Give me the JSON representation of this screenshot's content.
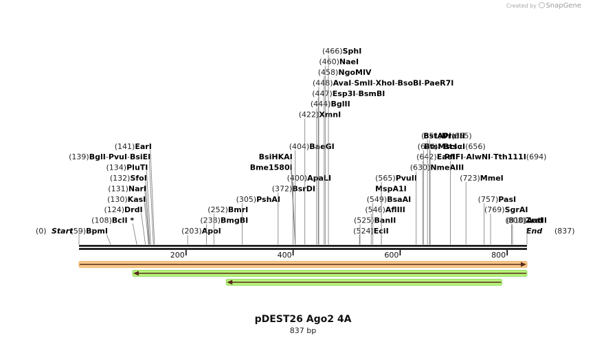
{
  "watermark": {
    "prefix": "Created by",
    "brand": "SnapGene"
  },
  "plasmid": {
    "name": "pDEST26 Ago2 4A",
    "length_label": "837 bp",
    "length": 837
  },
  "scale_ticks": [
    200,
    400,
    600,
    800
  ],
  "ends": {
    "start": {
      "pos": 0,
      "label": "Start"
    },
    "end": {
      "pos": 837,
      "label": "End"
    }
  },
  "colors": {
    "orange_fill": "#f7c98a",
    "orange_edge": "#e8a44a",
    "green_fill": "#b6f27a",
    "green_edge": "#7fd64a",
    "arrow": "#5a2a1a",
    "leader": "#777777"
  },
  "features": [
    {
      "start": 0,
      "end": 837,
      "dir": 1,
      "color": "orange",
      "row": 0
    },
    {
      "start": 100,
      "end": 837,
      "dir": -1,
      "color": "green",
      "row": 1
    },
    {
      "start": 275,
      "end": 790,
      "dir": -1,
      "color": "green",
      "row": 2
    }
  ],
  "sites": [
    {
      "row": 0,
      "side": "L",
      "stick": 59,
      "parts": [
        {
          "pos": 59,
          "name": "BpmI"
        }
      ]
    },
    {
      "row": 0,
      "side": "R",
      "stick": 203,
      "parts": [
        {
          "pos": 203,
          "name": "ApoI"
        }
      ]
    },
    {
      "row": 0,
      "side": "R",
      "stick": 524,
      "parts": [
        {
          "pos": 524,
          "name": "EciI"
        }
      ]
    },
    {
      "row": 1,
      "side": "L",
      "stick": 108,
      "parts": [
        {
          "pos": 108,
          "name": "BclI *"
        }
      ]
    },
    {
      "row": 1,
      "side": "R",
      "stick": 238,
      "parts": [
        {
          "pos": 238,
          "name": "BmgBI"
        }
      ]
    },
    {
      "row": 1,
      "side": "R",
      "stick": 525,
      "parts": [
        {
          "pos": 525,
          "name": "BanII"
        }
      ]
    },
    {
      "row": 1,
      "side": "R",
      "stick": 808,
      "parts": [
        {
          "pos": 808,
          "name": "ZraI"
        }
      ]
    },
    {
      "row": 1,
      "side": "R",
      "stick": 810,
      "parts": [
        {
          "pos": 810,
          "name": "AatII"
        }
      ]
    },
    {
      "row": 2,
      "side": "L",
      "stick": 124,
      "parts": [
        {
          "pos": 124,
          "name": "DrdI"
        }
      ]
    },
    {
      "row": 2,
      "side": "R",
      "stick": 252,
      "parts": [
        {
          "pos": 252,
          "name": "BmrI"
        }
      ]
    },
    {
      "row": 2,
      "side": "R",
      "stick": 546,
      "parts": [
        {
          "pos": 546,
          "name": "AflIII"
        }
      ]
    },
    {
      "row": 2,
      "side": "R",
      "stick": 769,
      "parts": [
        {
          "pos": 769,
          "name": "SgrAI"
        }
      ]
    },
    {
      "row": 3,
      "side": "L",
      "stick": 130,
      "parts": [
        {
          "pos": 130,
          "name": "KasI"
        }
      ]
    },
    {
      "row": 3,
      "side": "R",
      "stick": 305,
      "parts": [
        {
          "pos": 305,
          "name": "PshAI"
        }
      ]
    },
    {
      "row": 3,
      "side": "R",
      "stick": 549,
      "parts": [
        {
          "pos": 549,
          "name": "BsaAI"
        }
      ]
    },
    {
      "row": 3,
      "side": "R",
      "stick": 757,
      "parts": [
        {
          "pos": 757,
          "name": "PasI"
        }
      ]
    },
    {
      "row": 4,
      "side": "L",
      "stick": 131,
      "parts": [
        {
          "pos": 131,
          "name": "NarI"
        }
      ]
    },
    {
      "row": 4,
      "side": "R",
      "stick": 372,
      "parts": [
        {
          "pos": 372,
          "name": "BsrDI"
        }
      ]
    },
    {
      "row": 4,
      "side": "R",
      "stick": 565,
      "parts": [
        {
          "name": "MspA1I"
        }
      ]
    },
    {
      "row": 5,
      "side": "L",
      "stick": 132,
      "parts": [
        {
          "pos": 132,
          "name": "SfoI"
        }
      ]
    },
    {
      "row": 5,
      "side": "R",
      "stick": 400,
      "parts": [
        {
          "pos": 400,
          "name": "ApaLI"
        }
      ]
    },
    {
      "row": 5,
      "side": "R",
      "stick": 565,
      "parts": [
        {
          "pos": 565,
          "name": "PvuII"
        }
      ]
    },
    {
      "row": 5,
      "side": "R",
      "stick": 723,
      "parts": [
        {
          "pos": 723,
          "name": "MmeI"
        }
      ]
    },
    {
      "row": 6,
      "side": "L",
      "stick": 134,
      "parts": [
        {
          "pos": 134,
          "name": "PluTI"
        }
      ]
    },
    {
      "row": 6,
      "side": "R",
      "stick": 630,
      "parts": [
        {
          "pos": 630,
          "name": "NmeAIII"
        }
      ]
    },
    {
      "row": 6,
      "side": "L",
      "stick": 404,
      "parts": [
        {
          "name": "Bme1580I"
        }
      ]
    },
    {
      "row": 7,
      "side": "L",
      "stick": 139,
      "parts": [
        {
          "pos": 139,
          "name": "BglI"
        },
        {
          "name": "PvuI"
        },
        {
          "name": "BsiEI"
        }
      ]
    },
    {
      "row": 7,
      "side": "R",
      "stick": 642,
      "parts": [
        {
          "pos": 642,
          "name": "EaeI"
        }
      ]
    },
    {
      "row": 7,
      "side": "L",
      "stick": 404,
      "parts": [
        {
          "name": "BsiHKAI"
        }
      ]
    },
    {
      "row": 7,
      "side": "R",
      "stick": 694,
      "parts": [
        {
          "name": "PflFI"
        },
        {
          "name": "AlwNI"
        },
        {
          "name": "Tth111I"
        },
        {
          "pos": 694
        }
      ]
    },
    {
      "row": 8,
      "side": "L",
      "stick": 141,
      "parts": [
        {
          "pos": 141,
          "name": "EarI"
        }
      ]
    },
    {
      "row": 8,
      "side": "R",
      "stick": 404,
      "parts": [
        {
          "pos": 404,
          "name": "BaeGI"
        }
      ]
    },
    {
      "row": 8,
      "side": "R",
      "stick": 644,
      "parts": [
        {
          "pos": 644,
          "name": "MscI"
        }
      ]
    },
    {
      "row": 8,
      "side": "R",
      "stick": 656,
      "parts": [
        {
          "name": "BtsI"
        },
        {
          "name": "BtsαI"
        },
        {
          "pos": 656
        }
      ]
    },
    {
      "row": 9,
      "side": "R",
      "stick": 651,
      "parts": [
        {
          "pos": 651,
          "name": "DraIII"
        }
      ]
    },
    {
      "row": 9,
      "side": "R",
      "stick": 655,
      "parts": [
        {
          "name": "BstAPI"
        },
        {
          "pos": 655
        }
      ]
    },
    {
      "row": 11,
      "side": "R",
      "stick": 422,
      "parts": [
        {
          "pos": 422,
          "name": "XmnI"
        }
      ]
    },
    {
      "row": 12,
      "side": "R",
      "stick": 444,
      "parts": [
        {
          "pos": 444,
          "name": "BglII"
        }
      ]
    },
    {
      "row": 13,
      "side": "R",
      "stick": 447,
      "parts": [
        {
          "pos": 447,
          "name": "Esp3I"
        },
        {
          "name": "BsmBI"
        }
      ]
    },
    {
      "row": 14,
      "side": "R",
      "stick": 448,
      "parts": [
        {
          "pos": 448,
          "name": "AvaI"
        },
        {
          "name": "SmlI"
        },
        {
          "name": "XhoI"
        },
        {
          "name": "BsoBI"
        },
        {
          "name": "PaeR7I"
        }
      ]
    },
    {
      "row": 15,
      "side": "R",
      "stick": 458,
      "parts": [
        {
          "pos": 458,
          "name": "NgoMIV"
        }
      ]
    },
    {
      "row": 16,
      "side": "R",
      "stick": 460,
      "parts": [
        {
          "pos": 460,
          "name": "NaeI"
        }
      ]
    },
    {
      "row": 17,
      "side": "R",
      "stick": 466,
      "parts": [
        {
          "pos": 466,
          "name": "SphI"
        }
      ]
    }
  ]
}
